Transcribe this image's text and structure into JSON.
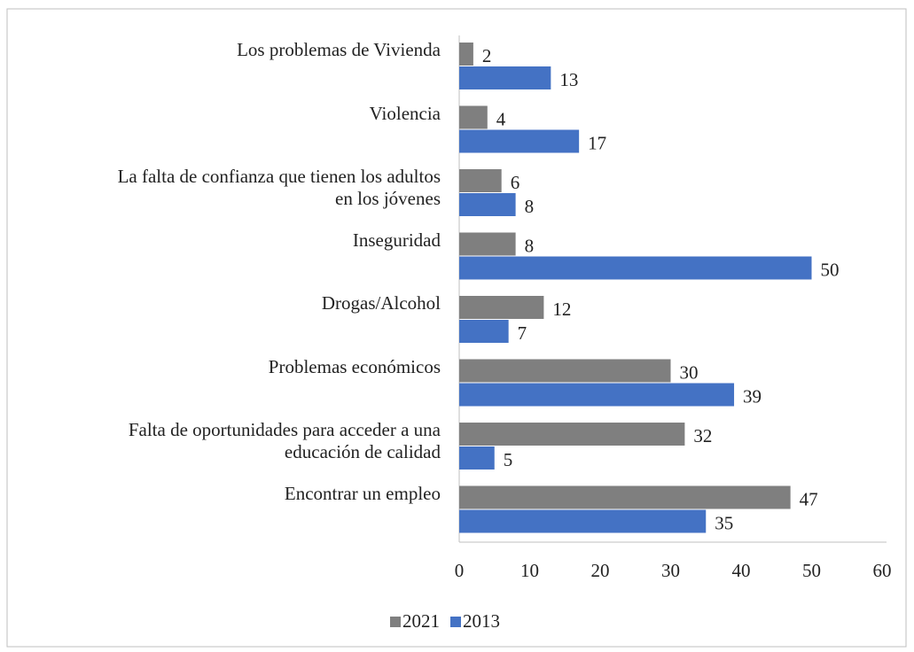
{
  "chart_data": {
    "type": "hbar",
    "categories": [
      "Los problemas de Vivienda",
      "Violencia",
      "La falta de confianza que tienen los adultos\nen los jóvenes",
      "Inseguridad",
      "Drogas/Alcohol",
      "Problemas económicos",
      "Falta de oportunidades para acceder a una\neducación de calidad",
      "Encontrar un empleo"
    ],
    "series": [
      {
        "name": "2021",
        "color": "#7f7f7f",
        "values": [
          2,
          4,
          6,
          8,
          12,
          30,
          32,
          47
        ]
      },
      {
        "name": "2013",
        "color": "#4472c4",
        "values": [
          13,
          17,
          8,
          50,
          7,
          39,
          5,
          35
        ]
      }
    ],
    "xlim": [
      0,
      60
    ],
    "xticks": [
      0,
      10,
      20,
      30,
      40,
      50,
      60
    ],
    "grid": false,
    "legend": "bottom"
  }
}
